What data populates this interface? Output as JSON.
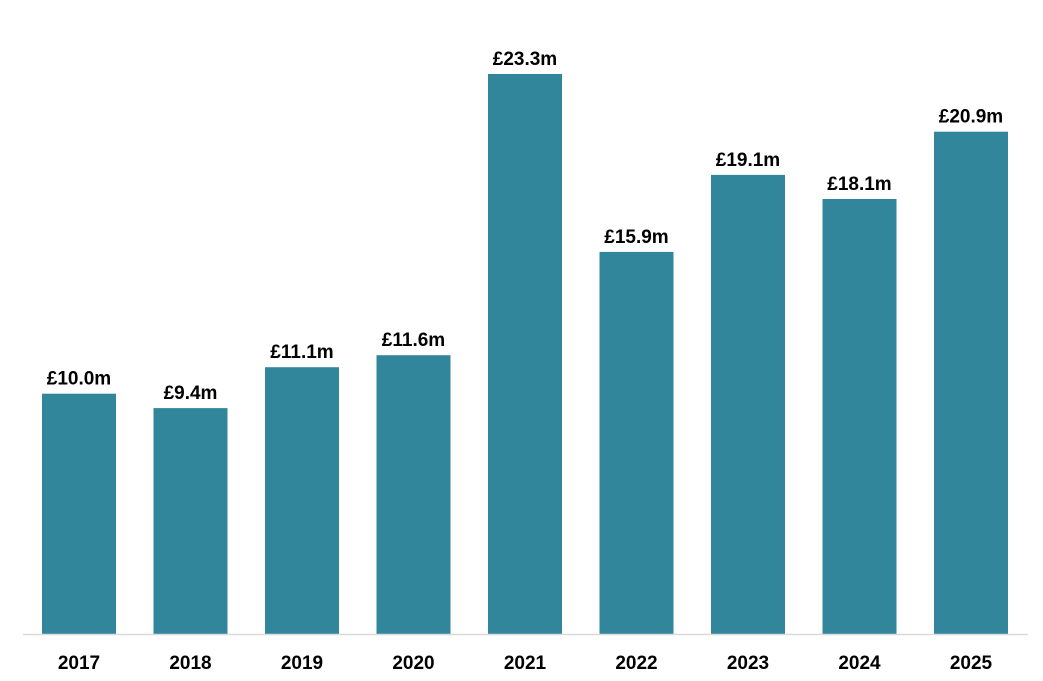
{
  "chart_data": {
    "type": "bar",
    "categories": [
      "2017",
      "2018",
      "2019",
      "2020",
      "2021",
      "2022",
      "2023",
      "2024",
      "2025"
    ],
    "values": [
      10.0,
      9.4,
      11.1,
      11.6,
      23.3,
      15.9,
      19.1,
      18.1,
      20.9
    ],
    "data_labels": [
      "£10.0m",
      "£9.4m",
      "£11.1m",
      "£11.6m",
      "£23.3m",
      "£15.9m",
      "£19.1m",
      "£18.1m",
      "£20.9m"
    ],
    "title": "",
    "xlabel": "",
    "ylabel": "",
    "ylim": [
      0,
      23.3
    ],
    "grid": false,
    "legend": "none",
    "colors": {
      "bar": "#32869c",
      "axis": "#d9d9d9",
      "text": "#000000"
    }
  }
}
